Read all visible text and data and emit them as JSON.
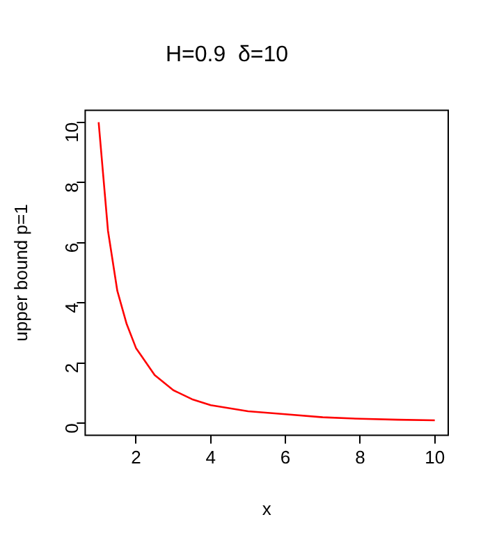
{
  "chart_data": {
    "type": "line",
    "title": "H=0.9  δ=10",
    "xlabel": "x",
    "ylabel": "upper bound p=1",
    "series": [
      {
        "color": "#ff0000",
        "x": [
          1,
          1.25,
          1.5,
          1.75,
          2,
          2.5,
          3,
          3.5,
          4,
          5,
          6,
          7,
          8,
          9,
          10
        ],
        "values": [
          10,
          6.4,
          4.4,
          3.3,
          2.5,
          1.6,
          1.1,
          0.8,
          0.6,
          0.4,
          0.3,
          0.2,
          0.15,
          0.12,
          0.1
        ]
      }
    ],
    "xlim": [
      0.64,
      10.36
    ],
    "ylim": [
      -0.4,
      10.4
    ],
    "xticks": [
      2,
      4,
      6,
      8,
      10
    ],
    "yticks": [
      0,
      2,
      4,
      6,
      8,
      10
    ],
    "grid": false,
    "legend": false,
    "marker": "none",
    "line_style": "solid"
  }
}
